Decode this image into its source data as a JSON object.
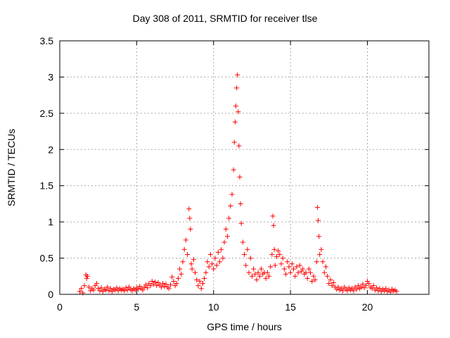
{
  "chart_data": {
    "type": "scatter",
    "title": "Day 308 of 2011, SRMTID for receiver tlse",
    "xlabel": "GPS time / hours",
    "ylabel": "SRMTID / TECUs",
    "xlim": [
      0,
      24
    ],
    "ylim": [
      0,
      3.5
    ],
    "xticks": [
      0,
      5,
      10,
      15,
      20
    ],
    "yticks": [
      0,
      0.5,
      1,
      1.5,
      2,
      2.5,
      3,
      3.5
    ],
    "xtick_labels": [
      "0",
      "5",
      "10",
      "15",
      "20"
    ],
    "ytick_labels": [
      "0",
      "0.5",
      "1",
      "1.5",
      "2",
      "2.5",
      "3",
      "3.5"
    ],
    "grid": true,
    "marker": "+",
    "series": [
      {
        "name": "tlse",
        "color": "#ff0000",
        "points": [
          [
            1.3,
            0.04
          ],
          [
            1.4,
            0.08
          ],
          [
            1.5,
            0.02
          ],
          [
            1.6,
            0.12
          ],
          [
            1.7,
            0.27
          ],
          [
            1.75,
            0.22
          ],
          [
            1.8,
            0.25
          ],
          [
            1.9,
            0.1
          ],
          [
            2.0,
            0.05
          ],
          [
            2.1,
            0.08
          ],
          [
            2.2,
            0.06
          ],
          [
            2.3,
            0.12
          ],
          [
            2.4,
            0.15
          ],
          [
            2.5,
            0.08
          ],
          [
            2.6,
            0.05
          ],
          [
            2.7,
            0.09
          ],
          [
            2.8,
            0.04
          ],
          [
            2.9,
            0.07
          ],
          [
            3.0,
            0.06
          ],
          [
            3.1,
            0.1
          ],
          [
            3.2,
            0.05
          ],
          [
            3.3,
            0.08
          ],
          [
            3.4,
            0.04
          ],
          [
            3.5,
            0.07
          ],
          [
            3.6,
            0.06
          ],
          [
            3.7,
            0.09
          ],
          [
            3.8,
            0.05
          ],
          [
            3.9,
            0.08
          ],
          [
            4.0,
            0.06
          ],
          [
            4.1,
            0.07
          ],
          [
            4.2,
            0.05
          ],
          [
            4.3,
            0.09
          ],
          [
            4.4,
            0.06
          ],
          [
            4.5,
            0.1
          ],
          [
            4.6,
            0.07
          ],
          [
            4.7,
            0.05
          ],
          [
            4.8,
            0.08
          ],
          [
            4.9,
            0.06
          ],
          [
            5.0,
            0.09
          ],
          [
            5.1,
            0.07
          ],
          [
            5.2,
            0.11
          ],
          [
            5.3,
            0.08
          ],
          [
            5.4,
            0.06
          ],
          [
            5.5,
            0.1
          ],
          [
            5.6,
            0.13
          ],
          [
            5.7,
            0.09
          ],
          [
            5.8,
            0.15
          ],
          [
            5.9,
            0.12
          ],
          [
            6.0,
            0.18
          ],
          [
            6.1,
            0.14
          ],
          [
            6.2,
            0.17
          ],
          [
            6.3,
            0.12
          ],
          [
            6.4,
            0.16
          ],
          [
            6.5,
            0.13
          ],
          [
            6.6,
            0.1
          ],
          [
            6.7,
            0.15
          ],
          [
            6.8,
            0.11
          ],
          [
            6.9,
            0.14
          ],
          [
            7.0,
            0.1
          ],
          [
            7.1,
            0.08
          ],
          [
            7.2,
            0.13
          ],
          [
            7.3,
            0.24
          ],
          [
            7.4,
            0.18
          ],
          [
            7.5,
            0.12
          ],
          [
            7.6,
            0.15
          ],
          [
            7.7,
            0.22
          ],
          [
            7.8,
            0.35
          ],
          [
            7.9,
            0.28
          ],
          [
            8.0,
            0.45
          ],
          [
            8.1,
            0.62
          ],
          [
            8.2,
            0.75
          ],
          [
            8.3,
            0.55
          ],
          [
            8.4,
            1.18
          ],
          [
            8.45,
            1.05
          ],
          [
            8.5,
            0.9
          ],
          [
            8.55,
            0.42
          ],
          [
            8.6,
            0.35
          ],
          [
            8.7,
            0.48
          ],
          [
            8.8,
            0.3
          ],
          [
            8.9,
            0.2
          ],
          [
            9.0,
            0.12
          ],
          [
            9.1,
            0.18
          ],
          [
            9.2,
            0.08
          ],
          [
            9.3,
            0.15
          ],
          [
            9.4,
            0.22
          ],
          [
            9.5,
            0.3
          ],
          [
            9.6,
            0.45
          ],
          [
            9.7,
            0.38
          ],
          [
            9.8,
            0.55
          ],
          [
            9.9,
            0.42
          ],
          [
            10.0,
            0.35
          ],
          [
            10.1,
            0.5
          ],
          [
            10.2,
            0.4
          ],
          [
            10.3,
            0.58
          ],
          [
            10.4,
            0.45
          ],
          [
            10.5,
            0.62
          ],
          [
            10.6,
            0.5
          ],
          [
            10.7,
            0.72
          ],
          [
            10.8,
            0.9
          ],
          [
            10.9,
            0.8
          ],
          [
            11.0,
            1.05
          ],
          [
            11.1,
            1.22
          ],
          [
            11.2,
            1.38
          ],
          [
            11.3,
            1.72
          ],
          [
            11.35,
            2.1
          ],
          [
            11.4,
            2.38
          ],
          [
            11.45,
            2.6
          ],
          [
            11.5,
            2.85
          ],
          [
            11.55,
            3.03
          ],
          [
            11.6,
            2.52
          ],
          [
            11.65,
            2.05
          ],
          [
            11.7,
            1.62
          ],
          [
            11.75,
            1.25
          ],
          [
            11.8,
            0.98
          ],
          [
            11.9,
            0.72
          ],
          [
            12.0,
            0.55
          ],
          [
            12.1,
            0.4
          ],
          [
            12.2,
            0.62
          ],
          [
            12.3,
            0.3
          ],
          [
            12.4,
            0.5
          ],
          [
            12.5,
            0.25
          ],
          [
            12.6,
            0.35
          ],
          [
            12.7,
            0.28
          ],
          [
            12.8,
            0.2
          ],
          [
            12.9,
            0.3
          ],
          [
            13.0,
            0.25
          ],
          [
            13.1,
            0.35
          ],
          [
            13.2,
            0.28
          ],
          [
            13.3,
            0.3
          ],
          [
            13.4,
            0.22
          ],
          [
            13.5,
            0.3
          ],
          [
            13.6,
            0.25
          ],
          [
            13.7,
            0.38
          ],
          [
            13.8,
            0.55
          ],
          [
            13.85,
            1.08
          ],
          [
            13.9,
            0.95
          ],
          [
            13.95,
            0.62
          ],
          [
            14.0,
            0.4
          ],
          [
            14.1,
            0.52
          ],
          [
            14.2,
            0.6
          ],
          [
            14.3,
            0.55
          ],
          [
            14.4,
            0.42
          ],
          [
            14.5,
            0.5
          ],
          [
            14.6,
            0.35
          ],
          [
            14.7,
            0.28
          ],
          [
            14.8,
            0.45
          ],
          [
            14.9,
            0.38
          ],
          [
            15.0,
            0.3
          ],
          [
            15.1,
            0.42
          ],
          [
            15.2,
            0.35
          ],
          [
            15.3,
            0.25
          ],
          [
            15.4,
            0.38
          ],
          [
            15.5,
            0.3
          ],
          [
            15.6,
            0.4
          ],
          [
            15.7,
            0.32
          ],
          [
            15.8,
            0.35
          ],
          [
            15.9,
            0.28
          ],
          [
            16.0,
            0.3
          ],
          [
            16.1,
            0.22
          ],
          [
            16.2,
            0.35
          ],
          [
            16.3,
            0.3
          ],
          [
            16.4,
            0.18
          ],
          [
            16.5,
            0.25
          ],
          [
            16.6,
            0.2
          ],
          [
            16.7,
            0.45
          ],
          [
            16.75,
            1.2
          ],
          [
            16.8,
            1.02
          ],
          [
            16.85,
            0.8
          ],
          [
            16.9,
            0.55
          ],
          [
            17.0,
            0.62
          ],
          [
            17.1,
            0.45
          ],
          [
            17.2,
            0.3
          ],
          [
            17.3,
            0.38
          ],
          [
            17.4,
            0.25
          ],
          [
            17.5,
            0.15
          ],
          [
            17.6,
            0.2
          ],
          [
            17.7,
            0.12
          ],
          [
            17.8,
            0.16
          ],
          [
            17.9,
            0.1
          ],
          [
            18.0,
            0.07
          ],
          [
            18.1,
            0.1
          ],
          [
            18.2,
            0.06
          ],
          [
            18.3,
            0.08
          ],
          [
            18.4,
            0.05
          ],
          [
            18.5,
            0.1
          ],
          [
            18.6,
            0.07
          ],
          [
            18.7,
            0.05
          ],
          [
            18.8,
            0.09
          ],
          [
            18.9,
            0.06
          ],
          [
            19.0,
            0.08
          ],
          [
            19.1,
            0.05
          ],
          [
            19.2,
            0.1
          ],
          [
            19.3,
            0.07
          ],
          [
            19.4,
            0.12
          ],
          [
            19.5,
            0.08
          ],
          [
            19.6,
            0.1
          ],
          [
            19.7,
            0.14
          ],
          [
            19.8,
            0.09
          ],
          [
            19.9,
            0.12
          ],
          [
            20.0,
            0.18
          ],
          [
            20.1,
            0.15
          ],
          [
            20.2,
            0.1
          ],
          [
            20.3,
            0.08
          ],
          [
            20.4,
            0.12
          ],
          [
            20.5,
            0.06
          ],
          [
            20.6,
            0.09
          ],
          [
            20.7,
            0.05
          ],
          [
            20.8,
            0.08
          ],
          [
            20.9,
            0.04
          ],
          [
            21.0,
            0.07
          ],
          [
            21.1,
            0.05
          ],
          [
            21.2,
            0.08
          ],
          [
            21.3,
            0.04
          ],
          [
            21.4,
            0.06
          ],
          [
            21.5,
            0.03
          ],
          [
            21.6,
            0.07
          ],
          [
            21.7,
            0.05
          ],
          [
            21.8,
            0.06
          ],
          [
            21.9,
            0.04
          ]
        ]
      }
    ]
  }
}
